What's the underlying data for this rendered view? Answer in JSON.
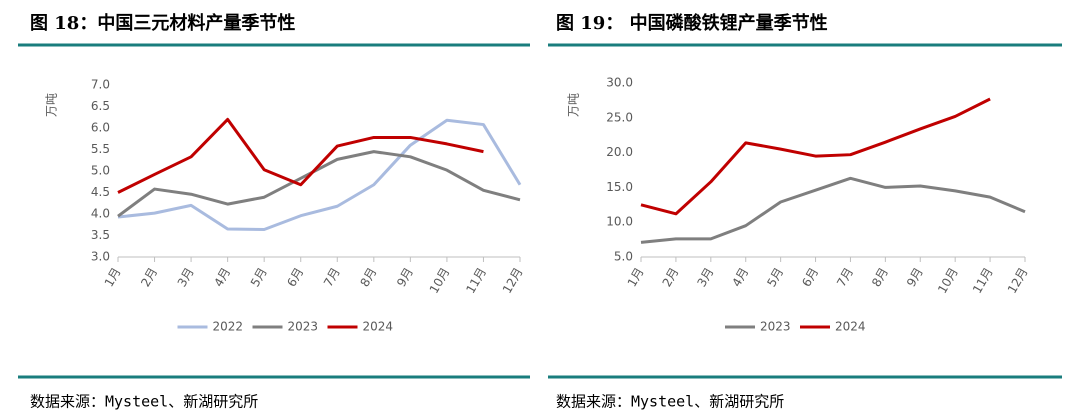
{
  "chart_data": [
    {
      "type": "line",
      "title": "图 18：中国三元材料产量季节性",
      "y_label": "万吨",
      "categories": [
        "1月",
        "2月",
        "3月",
        "4月",
        "5月",
        "6月",
        "7月",
        "8月",
        "9月",
        "10月",
        "11月",
        "12月"
      ],
      "series": [
        {
          "name": "2022",
          "color": "#a9bbdf",
          "values": [
            3.93,
            4.02,
            4.2,
            3.65,
            3.64,
            3.96,
            4.18,
            4.68,
            5.6,
            6.18,
            6.08,
            4.68
          ]
        },
        {
          "name": "2023",
          "color": "#7f7f7f",
          "values": [
            3.95,
            4.58,
            4.46,
            4.23,
            4.39,
            4.83,
            5.27,
            5.45,
            5.33,
            5.02,
            4.55,
            4.33
          ]
        },
        {
          "name": "2024",
          "color": "#c00000",
          "values": [
            4.5,
            4.92,
            5.33,
            6.2,
            5.03,
            4.68,
            5.58,
            5.78,
            5.78,
            5.63,
            5.45,
            null
          ]
        }
      ],
      "ylim": [
        3,
        7
      ],
      "yticks": [
        {
          "value": 3,
          "label": "3.0"
        },
        {
          "value": 3.5,
          "label": "3.5"
        },
        {
          "value": 4,
          "label": "4.0"
        },
        {
          "value": 4.5,
          "label": "4.5"
        },
        {
          "value": 5,
          "label": "5.0"
        },
        {
          "value": 5.5,
          "label": "5.5"
        },
        {
          "value": 6,
          "label": "6.0"
        },
        {
          "value": 6.5,
          "label": "6.5"
        },
        {
          "value": 7,
          "label": "7.0"
        }
      ],
      "grid": false,
      "legend": "bottom",
      "source": "数据来源：Mysteel、新湖研究所"
    },
    {
      "type": "line",
      "title": "图 19：  中国磷酸铁锂产量季节性",
      "y_label": "万吨",
      "categories": [
        "1月",
        "2月",
        "3月",
        "4月",
        "5月",
        "6月",
        "7月",
        "8月",
        "9月",
        "10月",
        "11月",
        "12月"
      ],
      "series": [
        {
          "name": "2023",
          "color": "#7f7f7f",
          "values": [
            7.1,
            7.6,
            7.6,
            9.5,
            12.9,
            14.6,
            16.3,
            15.0,
            15.2,
            14.5,
            13.6,
            11.5
          ]
        },
        {
          "name": "2024",
          "color": "#c00000",
          "values": [
            12.5,
            11.2,
            15.8,
            21.4,
            20.5,
            19.5,
            19.7,
            21.5,
            23.4,
            25.2,
            27.7,
            null
          ]
        }
      ],
      "ylim": [
        5,
        30
      ],
      "yticks": [
        {
          "value": 5,
          "label": "5.0"
        },
        {
          "value": 10,
          "label": "10.0"
        },
        {
          "value": 15,
          "label": "15.0"
        },
        {
          "value": 20,
          "label": "20.0"
        },
        {
          "value": 25,
          "label": "25.0"
        },
        {
          "value": 30,
          "label": "30.0"
        }
      ],
      "grid": false,
      "legend": "bottom",
      "source": "数据来源：Mysteel、新湖研究所"
    }
  ]
}
